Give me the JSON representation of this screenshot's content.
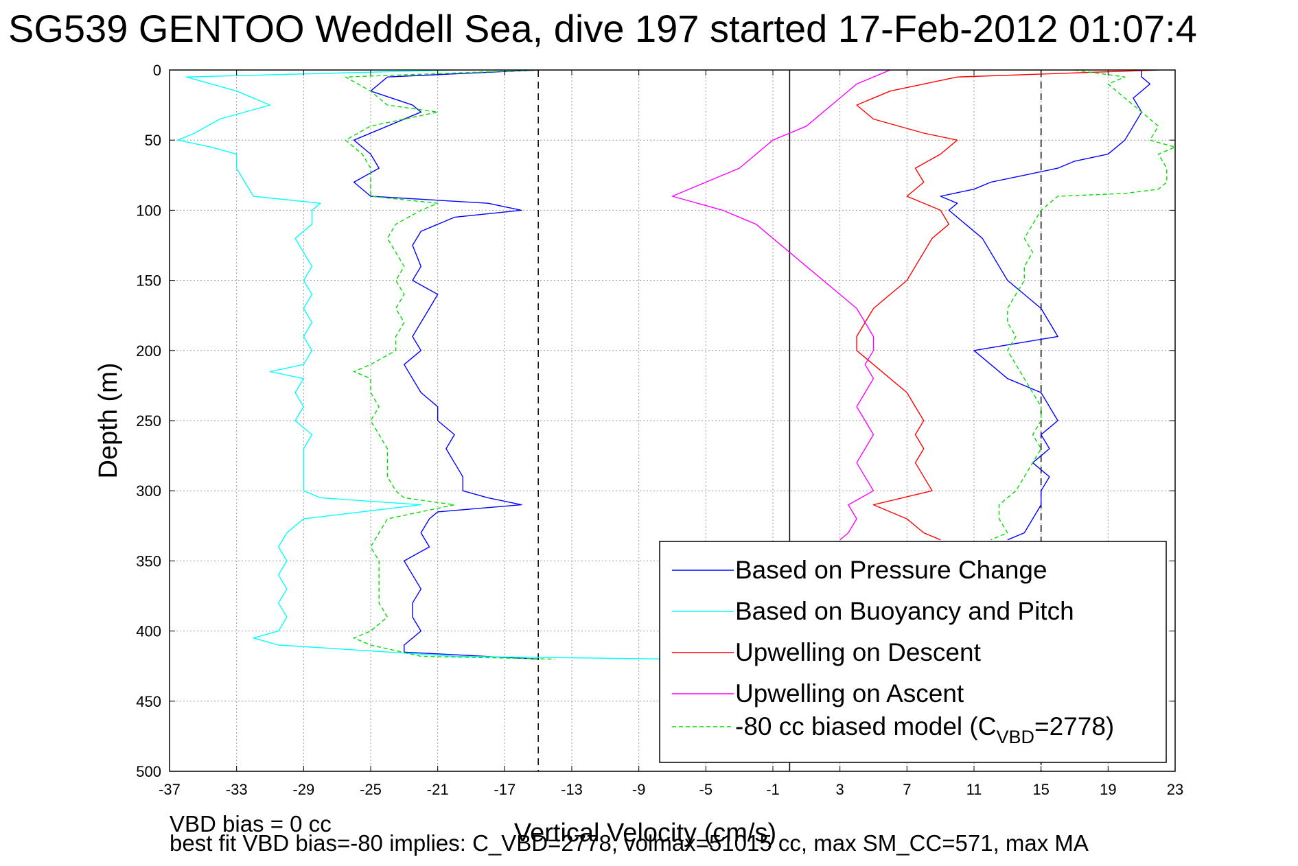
{
  "title": "SG539 GENTOO Weddell Sea, dive 197 started 17-Feb-2012 01:07:4",
  "footer": {
    "line1": "VBD bias = 0 cc",
    "line2": "best fit VBD bias=-80 implies: C_VBD=2778, volmax=51015 cc, max SM_CC=571, max MA"
  },
  "legend": {
    "items": [
      {
        "label": "Based on Pressure Change",
        "color": "#0000ff",
        "dash": "solid"
      },
      {
        "label": "Based on Buoyancy and Pitch",
        "color": "#00ffff",
        "dash": "solid"
      },
      {
        "label": "Upwelling on Descent",
        "color": "#ff0000",
        "dash": "solid"
      },
      {
        "label": "Upwelling on Ascent",
        "color": "#ff00ff",
        "dash": "solid"
      },
      {
        "label": "-80 cc biased model (C",
        "sub": "VBD",
        "suffix": "=2778)",
        "color": "#00dd00",
        "dash": "dashed"
      }
    ]
  },
  "chart_data": {
    "type": "line",
    "xlabel": "Vertical Velocity (cm/s)",
    "ylabel": "Depth (m)",
    "xlim": [
      -37,
      23
    ],
    "ylim": [
      0,
      500
    ],
    "y_reversed": true,
    "xticks": [
      -37,
      -33,
      -29,
      -25,
      -21,
      -17,
      -13,
      -9,
      -5,
      -1,
      3,
      7,
      11,
      15,
      19,
      23
    ],
    "yticks": [
      0,
      50,
      100,
      150,
      200,
      250,
      300,
      350,
      400,
      450,
      500
    ],
    "grid": true,
    "legend_position": "bottom-right",
    "reference_lines": [
      {
        "x": -15,
        "style": "dashed",
        "color": "#000000"
      },
      {
        "x": 0,
        "style": "solid",
        "color": "#000000"
      },
      {
        "x": 15,
        "style": "dashed",
        "color": "#000000"
      }
    ],
    "series": [
      {
        "name": "Based on Pressure Change",
        "color": "#0000ff",
        "dash": "solid",
        "depth": [
          0,
          5,
          15,
          25,
          30,
          40,
          50,
          60,
          70,
          80,
          90,
          95,
          100,
          105,
          115,
          125,
          140,
          150,
          160,
          170,
          180,
          190,
          200,
          210,
          220,
          230,
          240,
          250,
          260,
          270,
          280,
          290,
          300,
          305,
          310,
          315,
          320,
          330,
          340,
          350,
          360,
          370,
          380,
          390,
          400,
          410,
          415,
          420,
          0,
          5,
          10,
          20,
          30,
          40,
          50,
          60,
          65,
          70,
          75,
          80,
          85,
          90,
          95,
          100,
          110,
          120,
          130,
          140,
          150,
          160,
          170,
          180,
          190,
          200,
          210,
          220,
          230,
          240,
          250,
          260,
          270,
          280,
          290,
          300,
          310,
          320,
          330,
          335
        ],
        "velocity": [
          -15,
          -24,
          -25,
          -22.5,
          -22,
          -24,
          -26,
          -25,
          -24.5,
          -26,
          -25,
          -18,
          -16,
          -20,
          -22,
          -22.5,
          -22,
          -22.5,
          -21,
          -21.5,
          -22,
          -22.5,
          -22,
          -23,
          -22.5,
          -22,
          -21,
          -21,
          -20,
          -20.5,
          -20,
          -19.5,
          -19.5,
          -18,
          -16,
          -21,
          -21.5,
          -22,
          -21.5,
          -23,
          -22.5,
          -22,
          -22.5,
          -22.5,
          -22,
          -23,
          -23,
          -15,
          21,
          21,
          21.5,
          20.5,
          21,
          20.5,
          20,
          19,
          17,
          16,
          14,
          12,
          11,
          9,
          10,
          9.5,
          10.5,
          11.5,
          12,
          12.5,
          13,
          14,
          15,
          15.5,
          16,
          11,
          12,
          13,
          15,
          15.5,
          16,
          15,
          15.5,
          14.5,
          15.5,
          15,
          15,
          14.5,
          14,
          13
        ]
      },
      {
        "name": "Based on Buoyancy and Pitch",
        "color": "#00ffff",
        "dash": "solid",
        "depth": [
          0,
          5,
          15,
          25,
          35,
          45,
          50,
          55,
          60,
          70,
          80,
          90,
          95,
          100,
          110,
          120,
          130,
          140,
          150,
          160,
          170,
          180,
          190,
          200,
          210,
          215,
          220,
          230,
          240,
          250,
          260,
          270,
          280,
          290,
          300,
          305,
          310,
          320,
          330,
          340,
          350,
          360,
          370,
          380,
          390,
          400,
          405,
          410,
          418,
          420
        ],
        "velocity": [
          -20,
          -36,
          -33,
          -31,
          -34,
          -35.5,
          -36.5,
          -34.5,
          -33,
          -33,
          -32.5,
          -32,
          -28,
          -28.5,
          -28.5,
          -29.5,
          -29,
          -28.5,
          -29,
          -28.5,
          -29,
          -28.5,
          -29,
          -28.5,
          -29,
          -31,
          -29,
          -29.5,
          -29,
          -29.5,
          -28.5,
          -29,
          -29,
          -29,
          -29,
          -28,
          -22,
          -29,
          -30,
          -30.5,
          -30,
          -30.5,
          -30,
          -30.5,
          -30,
          -30.5,
          -32,
          -30.5,
          -20,
          -7
        ]
      },
      {
        "name": "Upwelling on Descent",
        "color": "#ff0000",
        "dash": "solid",
        "depth": [
          0,
          5,
          15,
          25,
          35,
          45,
          50,
          60,
          70,
          80,
          90,
          100,
          110,
          120,
          130,
          140,
          150,
          160,
          170,
          180,
          190,
          200,
          210,
          220,
          230,
          240,
          250,
          260,
          270,
          280,
          290,
          300,
          310,
          320,
          330,
          335
        ],
        "velocity": [
          22,
          10,
          6,
          4,
          5,
          8,
          10,
          9,
          7.5,
          8,
          7,
          9,
          9.5,
          8.5,
          8,
          7.5,
          7,
          6,
          5,
          4.5,
          4,
          4,
          5,
          6,
          7,
          7.5,
          8,
          7.5,
          8,
          7.5,
          8,
          8.5,
          5,
          7,
          8,
          9
        ]
      },
      {
        "name": "Upwelling on Ascent",
        "color": "#ff00ff",
        "dash": "solid",
        "depth": [
          0,
          5,
          10,
          20,
          30,
          40,
          50,
          60,
          70,
          80,
          90,
          100,
          110,
          120,
          130,
          140,
          150,
          160,
          170,
          180,
          190,
          200,
          210,
          220,
          230,
          240,
          250,
          260,
          270,
          280,
          290,
          300,
          310,
          320,
          330,
          335
        ],
        "velocity": [
          6,
          5,
          4,
          3,
          2,
          1,
          -1,
          -2,
          -3,
          -5,
          -7,
          -4,
          -2,
          -1,
          0,
          1,
          2,
          3,
          4,
          4.5,
          5,
          5,
          4.5,
          5,
          4.5,
          4,
          4.5,
          5,
          4.5,
          4,
          4.5,
          5,
          3.5,
          4,
          3.5,
          3
        ]
      },
      {
        "name": "-80 cc biased model (CVBD=2778)",
        "color": "#00dd00",
        "dash": "dashed",
        "depth": [
          0,
          5,
          15,
          25,
          30,
          40,
          50,
          60,
          70,
          80,
          90,
          95,
          100,
          110,
          120,
          130,
          140,
          150,
          160,
          170,
          180,
          190,
          200,
          210,
          215,
          220,
          230,
          240,
          250,
          260,
          270,
          280,
          290,
          300,
          305,
          310,
          320,
          330,
          340,
          350,
          360,
          370,
          380,
          390,
          400,
          405,
          410,
          418,
          420,
          0,
          5,
          10,
          20,
          30,
          40,
          50,
          55,
          60,
          70,
          80,
          85,
          88,
          90,
          100,
          110,
          120,
          130,
          140,
          150,
          160,
          170,
          180,
          190,
          200,
          210,
          220,
          230,
          240,
          250,
          260,
          270,
          280,
          290,
          300,
          310,
          320,
          330,
          335
        ],
        "velocity": [
          -15,
          -26.5,
          -25,
          -24,
          -21,
          -25,
          -26.5,
          -25.5,
          -25,
          -25,
          -25,
          -21,
          -22,
          -23.5,
          -24,
          -23.5,
          -23,
          -23.5,
          -23,
          -23.5,
          -23,
          -23.5,
          -23.5,
          -25,
          -26,
          -25,
          -25,
          -24.5,
          -25,
          -24.5,
          -24,
          -24,
          -24,
          -23.5,
          -23,
          -20,
          -24,
          -24.5,
          -25,
          -24.5,
          -24.5,
          -24.5,
          -24.5,
          -24,
          -25,
          -26,
          -25,
          -22,
          -14,
          17,
          20,
          19,
          20,
          21,
          22,
          21.5,
          23,
          22,
          22.5,
          22.5,
          22,
          20,
          16,
          15,
          14.5,
          14,
          14.5,
          14,
          14,
          13.5,
          13,
          13,
          13.5,
          13,
          13.5,
          14,
          14.5,
          15,
          15,
          14.5,
          15,
          14.5,
          14,
          13.5,
          12.5,
          12.5,
          13,
          12
        ]
      }
    ]
  }
}
